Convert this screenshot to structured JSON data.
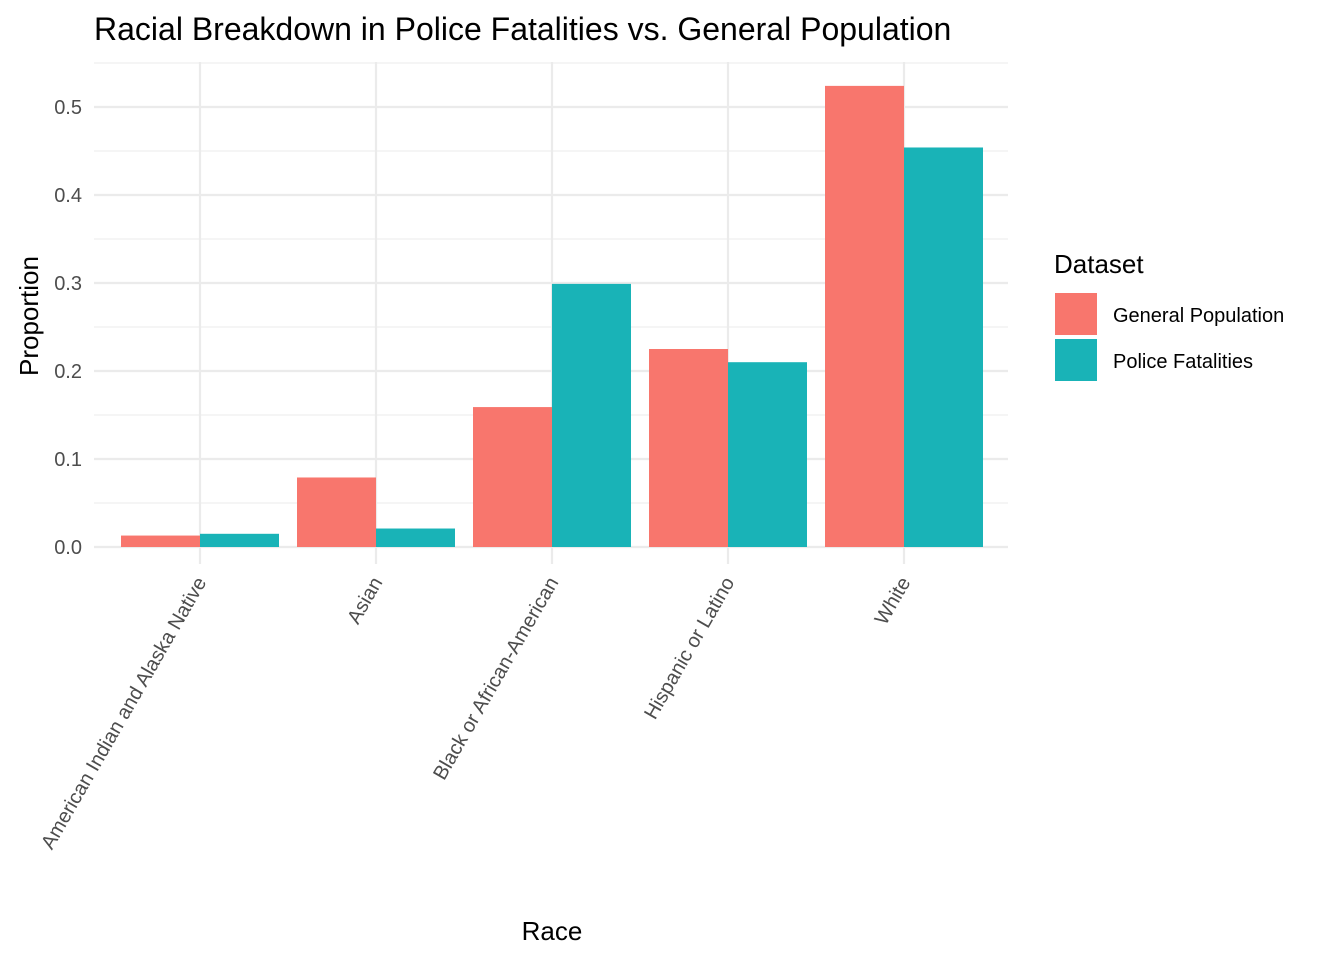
{
  "chart_data": {
    "type": "bar",
    "title": "Racial Breakdown in Police Fatalities vs. General Population",
    "xlabel": "Race",
    "ylabel": "Proportion",
    "categories": [
      "American Indian and Alaska Native",
      "Asian",
      "Black or African-American",
      "Hispanic or Latino",
      "White"
    ],
    "series": [
      {
        "name": "General Population",
        "color": "#f8766d",
        "values": [
          0.013,
          0.079,
          0.159,
          0.225,
          0.524
        ]
      },
      {
        "name": "Police Fatalities",
        "color": "#19b3b7",
        "values": [
          0.015,
          0.021,
          0.299,
          0.21,
          0.454
        ]
      }
    ],
    "ylim": [
      0,
      0.55
    ],
    "yticks": [
      "0.0",
      "0.1",
      "0.2",
      "0.3",
      "0.4",
      "0.5"
    ],
    "legend": {
      "title": "Dataset",
      "position": "right"
    },
    "grid": true,
    "x_tick_rotation_deg": 60
  }
}
